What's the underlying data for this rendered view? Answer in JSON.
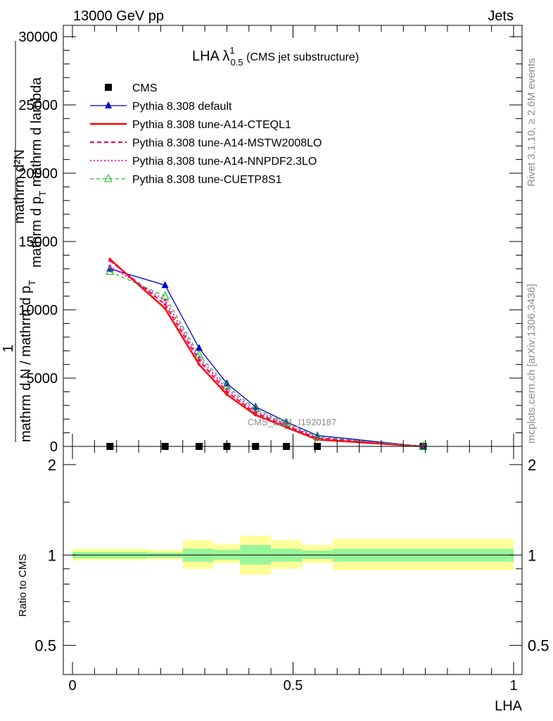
{
  "header": {
    "left": "13000 GeV pp",
    "right": "Jets"
  },
  "side_text": {
    "top": "Rivet 3.1.10, ≥ 2.6M events",
    "bottom": "mcplots.cern.ch [arXiv:1306.3436]"
  },
  "title": {
    "main": "LHA λ",
    "sup": "1",
    "sub": "0.5",
    "suffix": " (CMS jet substructure)"
  },
  "watermark": "CMS_2021_I1920187",
  "ylabel_main": {
    "line1": "mathrm d²N",
    "line2": "mathrm d p",
    "line2_sub": "T",
    "line2_rest": " mathrm d lambda",
    "numerator": "1",
    "denominator": "mathrm d N / mathrm d p",
    "denominator_sub": "T"
  },
  "ylabel_ratio": "Ratio to CMS",
  "xlabel": "LHA",
  "colors": {
    "cms": "#000000",
    "default": "#0000cc",
    "cteql1": "#ff0000",
    "mstw": "#ee0a4e",
    "nnpdf": "#ff00cc",
    "cuetp8s1": "#22bb22",
    "band_inner": "#99f599",
    "band_outer": "#ffff99"
  },
  "chart_data": [
    {
      "type": "line",
      "xlim": [
        0,
        1
      ],
      "ylim": [
        0,
        30000
      ],
      "yticks": [
        0,
        5000,
        10000,
        15000,
        20000,
        25000,
        30000
      ],
      "ytick_labels": [
        "0",
        "5000",
        "10000",
        "15000",
        "20000",
        "25000",
        "30000"
      ],
      "legend_position": "top-left",
      "series": [
        {
          "name": "CMS",
          "x": [
            0.085,
            0.21,
            0.287,
            0.35,
            0.415,
            0.485,
            0.555,
            0.795
          ],
          "values": [
            0,
            0,
            0,
            0,
            0,
            0,
            0,
            0
          ]
        },
        {
          "name": "Pythia 8.308 default",
          "x": [
            0.085,
            0.21,
            0.287,
            0.35,
            0.415,
            0.485,
            0.555,
            0.795
          ],
          "values": [
            13000,
            11800,
            7200,
            4600,
            2900,
            1800,
            800,
            0
          ]
        },
        {
          "name": "Pythia 8.308 tune-A14-CTEQL1",
          "x": [
            0.085,
            0.21,
            0.287,
            0.35,
            0.415,
            0.485,
            0.555,
            0.795
          ],
          "values": [
            13700,
            10100,
            6000,
            3800,
            2300,
            1400,
            500,
            0
          ]
        },
        {
          "name": "Pythia 8.308 tune-A14-MSTW2008LO",
          "x": [
            0.085,
            0.21,
            0.287,
            0.35,
            0.415,
            0.485,
            0.555,
            0.795
          ],
          "values": [
            13600,
            10400,
            6300,
            4000,
            2450,
            1500,
            600,
            0
          ]
        },
        {
          "name": "Pythia 8.308 tune-A14-NNPDF2.3LO",
          "x": [
            0.085,
            0.21,
            0.287,
            0.35,
            0.415,
            0.485,
            0.555,
            0.795
          ],
          "values": [
            13200,
            10700,
            6500,
            4200,
            2600,
            1600,
            650,
            0
          ]
        },
        {
          "name": "Pythia 8.308 tune-CUETP8S1",
          "x": [
            0.085,
            0.21,
            0.287,
            0.35,
            0.415,
            0.485,
            0.555,
            0.795
          ],
          "values": [
            12800,
            11000,
            6700,
            4400,
            2750,
            1700,
            700,
            0
          ]
        }
      ]
    },
    {
      "type": "area",
      "xlim": [
        0,
        1
      ],
      "ylim": [
        0.4,
        2.3
      ],
      "yticks": [
        0.5,
        1,
        2
      ],
      "ytick_labels": [
        "0.5",
        "1",
        "2"
      ],
      "xticks": [
        0,
        0.5,
        1
      ],
      "xtick_labels": [
        "0",
        "0.5",
        "1"
      ],
      "reference_line": 1,
      "bins": [
        {
          "lo": 0.0,
          "hi": 0.17,
          "inner": [
            0.975,
            1.025
          ],
          "outer": [
            0.96,
            1.05
          ]
        },
        {
          "lo": 0.17,
          "hi": 0.25,
          "inner": [
            0.98,
            1.02
          ],
          "outer": [
            0.965,
            1.04
          ]
        },
        {
          "lo": 0.25,
          "hi": 0.32,
          "inner": [
            0.95,
            1.05
          ],
          "outer": [
            0.9,
            1.12
          ]
        },
        {
          "lo": 0.32,
          "hi": 0.38,
          "inner": [
            0.965,
            1.04
          ],
          "outer": [
            0.94,
            1.085
          ]
        },
        {
          "lo": 0.38,
          "hi": 0.45,
          "inner": [
            0.93,
            1.08
          ],
          "outer": [
            0.86,
            1.16
          ]
        },
        {
          "lo": 0.45,
          "hi": 0.52,
          "inner": [
            0.95,
            1.05
          ],
          "outer": [
            0.9,
            1.12
          ]
        },
        {
          "lo": 0.52,
          "hi": 0.59,
          "inner": [
            0.97,
            1.035
          ],
          "outer": [
            0.94,
            1.08
          ]
        },
        {
          "lo": 0.59,
          "hi": 1.0,
          "inner": [
            0.95,
            1.05
          ],
          "outer": [
            0.89,
            1.13
          ]
        }
      ]
    }
  ]
}
